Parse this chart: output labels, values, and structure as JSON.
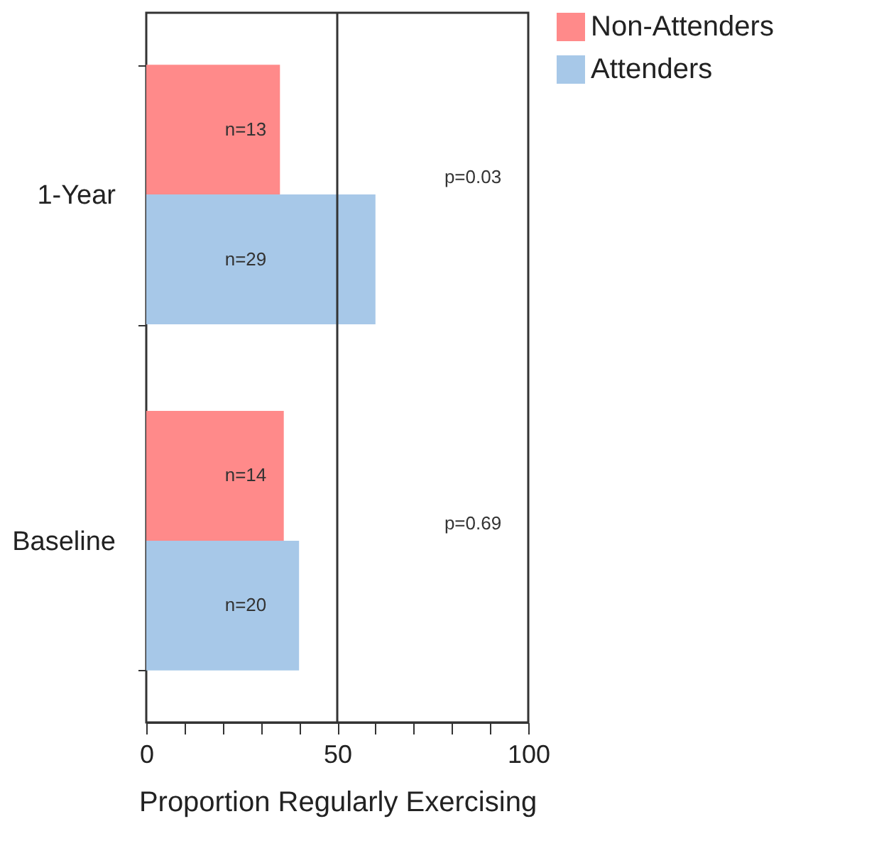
{
  "chart_data": {
    "type": "bar",
    "orientation": "horizontal",
    "xlabel": "Proportion Regularly Exercising",
    "categories": [
      "1-Year",
      "Baseline"
    ],
    "series": [
      {
        "name": "Non-Attenders",
        "color": "#ff8a8a",
        "values": [
          35,
          36
        ]
      },
      {
        "name": "Attenders",
        "color": "#a7c8e8",
        "values": [
          60,
          40
        ]
      }
    ],
    "xlim": [
      0,
      100
    ],
    "xticks": [
      0,
      {
        "value": 10,
        "label": null
      },
      {
        "value": 20,
        "label": null
      },
      {
        "value": 30,
        "label": null
      },
      {
        "value": 40,
        "label": null
      },
      50,
      {
        "value": 60,
        "label": null
      },
      {
        "value": 70,
        "label": null
      },
      {
        "value": 80,
        "label": null
      },
      {
        "value": 90,
        "label": null
      },
      100
    ],
    "ref_lines": [
      {
        "axis": "x",
        "value": 50,
        "color": "#333333"
      }
    ],
    "annotations": [
      "n=13",
      "n=29",
      "n=14",
      "n=20",
      "p=0.03",
      "p=0.69"
    ],
    "grid": false,
    "legend": "right"
  }
}
